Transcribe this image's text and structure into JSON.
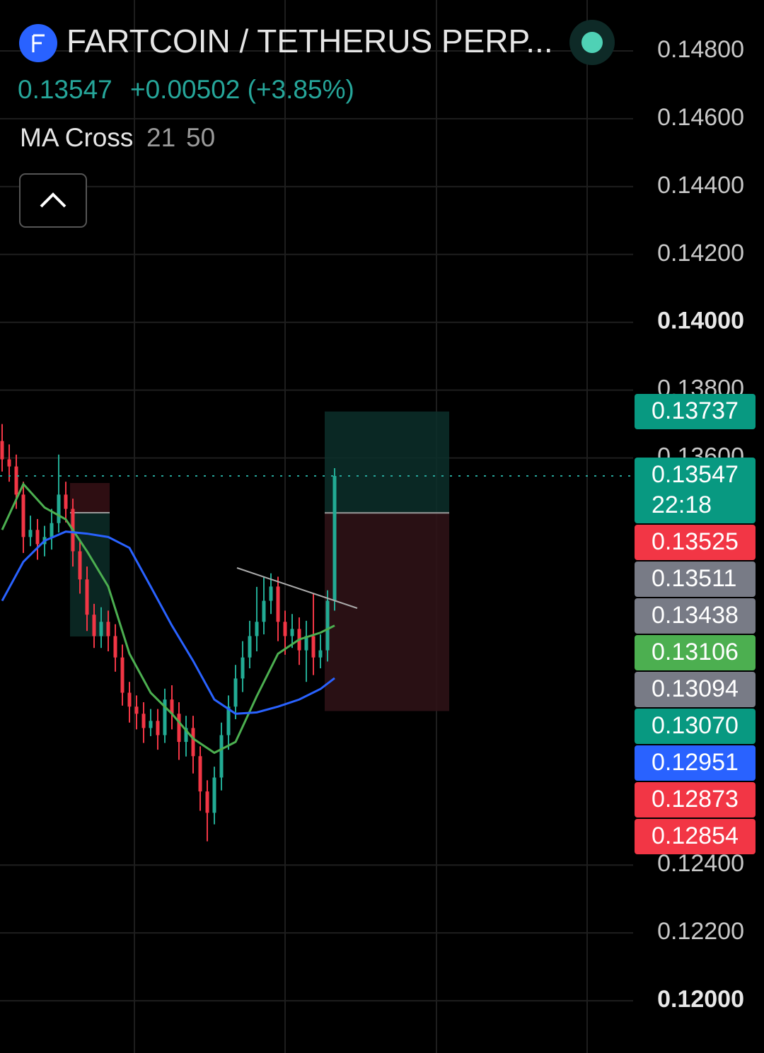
{
  "header": {
    "symbol": "FARTCOIN / TETHERUS PERP...",
    "last": "0.13547",
    "change": "+0.00502 (+3.85%)",
    "indicator": {
      "name": "MA Cross",
      "fast": "21",
      "slow": "50"
    }
  },
  "chart_data": {
    "type": "candlestick",
    "ylim": [
      0.11846,
      0.1495
    ],
    "yticks": [
      {
        "value": 0.148,
        "label": "0.14800"
      },
      {
        "value": 0.146,
        "label": "0.14600"
      },
      {
        "value": 0.144,
        "label": "0.14400"
      },
      {
        "value": 0.142,
        "label": "0.14200"
      },
      {
        "value": 0.14,
        "label": "0.14000",
        "bold": true
      },
      {
        "value": 0.138,
        "label": "0.13800"
      },
      {
        "value": 0.136,
        "label": "0.13600"
      },
      {
        "value": 0.124,
        "label": "0.12400"
      },
      {
        "value": 0.122,
        "label": "0.12200"
      },
      {
        "value": 0.12,
        "label": "0.12000",
        "bold": true
      }
    ],
    "up_color": "#22ab94",
    "down_color": "#f23645",
    "open": [
      0.1365,
      0.13596,
      0.13575,
      0.13492,
      0.13367,
      0.13388,
      0.13346,
      0.13367,
      0.13408,
      0.13492,
      0.1345,
      0.13325,
      0.13242,
      0.13138,
      0.13075,
      0.13117,
      0.13075,
      0.13012,
      0.12908,
      0.12867,
      0.12846,
      0.12804,
      0.12825,
      0.12783,
      0.12888,
      0.12846,
      0.12763,
      0.12804,
      0.12721,
      0.12617,
      0.12554,
      0.12658,
      0.12783,
      0.12867,
      0.1295,
      0.13012,
      0.13075,
      0.13117,
      0.13179,
      0.13221,
      0.13117,
      0.13075,
      0.13096,
      0.13033,
      0.13075,
      0.13012,
      0.13033,
      0.13179
    ],
    "high": [
      0.137,
      0.1364,
      0.1361,
      0.1353,
      0.1343,
      0.1342,
      0.134,
      0.1345,
      0.1361,
      0.1353,
      0.1348,
      0.1336,
      0.1328,
      0.1317,
      0.1316,
      0.1315,
      0.1311,
      0.1305,
      0.1294,
      0.129,
      0.1288,
      0.1286,
      0.1286,
      0.1292,
      0.1293,
      0.1288,
      0.1284,
      0.1284,
      0.1275,
      0.1265,
      0.1269,
      0.1282,
      0.129,
      0.1299,
      0.1306,
      0.1312,
      0.1322,
      0.1325,
      0.1326,
      0.1325,
      0.1315,
      0.1314,
      0.1313,
      0.1312,
      0.132,
      0.1308,
      0.1321,
      0.1357
    ],
    "low": [
      0.1356,
      0.1353,
      0.1345,
      0.1332,
      0.1334,
      0.133,
      0.1331,
      0.1333,
      0.1338,
      0.1341,
      0.1328,
      0.132,
      0.1309,
      0.1304,
      0.1304,
      0.1303,
      0.1297,
      0.1287,
      0.1282,
      0.128,
      0.1276,
      0.1278,
      0.1274,
      0.1276,
      0.128,
      0.1271,
      0.1272,
      0.1267,
      0.1256,
      0.1247,
      0.1252,
      0.1262,
      0.1274,
      0.1283,
      0.1291,
      0.1298,
      0.1303,
      0.1308,
      0.1314,
      0.1306,
      0.1302,
      0.1304,
      0.1299,
      0.1294,
      0.1296,
      0.1298,
      0.13,
      0.1315
    ],
    "close": [
      0.13596,
      0.13575,
      0.13492,
      0.13367,
      0.13388,
      0.13346,
      0.13367,
      0.13408,
      0.13492,
      0.1345,
      0.13325,
      0.13242,
      0.13138,
      0.13075,
      0.13117,
      0.13075,
      0.13012,
      0.12908,
      0.12867,
      0.12846,
      0.12804,
      0.12825,
      0.12783,
      0.12888,
      0.12846,
      0.12763,
      0.12804,
      0.12721,
      0.12617,
      0.12554,
      0.12658,
      0.12783,
      0.12867,
      0.1295,
      0.13012,
      0.13075,
      0.13117,
      0.13179,
      0.13221,
      0.13117,
      0.13075,
      0.13096,
      0.13033,
      0.13075,
      0.13012,
      0.13033,
      0.13179,
      0.13547
    ],
    "ma_lines": [
      {
        "color": "#4caf50",
        "x": [
          0,
          3,
          6,
          9,
          12,
          15,
          18,
          21,
          24,
          27,
          30,
          33,
          36,
          39,
          42,
          45,
          47
        ],
        "values": [
          0.13388,
          0.13523,
          0.13454,
          0.13419,
          0.13325,
          0.13221,
          0.13023,
          0.12908,
          0.12846,
          0.12773,
          0.12731,
          0.12763,
          0.12898,
          0.13023,
          0.13065,
          0.13085,
          0.13106
        ]
      },
      {
        "color": "#2962ff",
        "x": [
          0,
          3,
          6,
          9,
          12,
          15,
          18,
          21,
          24,
          27,
          30,
          33,
          36,
          39,
          42,
          45,
          47
        ],
        "values": [
          0.13179,
          0.13294,
          0.13356,
          0.13383,
          0.13377,
          0.13367,
          0.13335,
          0.13221,
          0.13106,
          0.13002,
          0.12888,
          0.12846,
          0.1285,
          0.12867,
          0.12888,
          0.12919,
          0.12951
        ]
      }
    ],
    "position": {
      "target": 0.13737,
      "entry": 0.13438,
      "stop": 0.12854
    },
    "last_price": 0.13547,
    "price_tags": [
      {
        "price": 0.13737,
        "color": "#089981"
      },
      {
        "price": 0.13547,
        "color": "#089981",
        "countdown": "22:18"
      },
      {
        "price": 0.13525,
        "color": "#f23645"
      },
      {
        "price": 0.13511,
        "color": "#787b86"
      },
      {
        "price": 0.13438,
        "color": "#787b86"
      },
      {
        "price": 0.13106,
        "color": "#4caf50"
      },
      {
        "price": 0.13094,
        "color": "#787b86"
      },
      {
        "price": {
          "value": 0.1307,
          "label": "0.13070"
        },
        "color": "#089981"
      },
      {
        "price": 0.12951,
        "color": "#2962ff"
      },
      {
        "price": 0.12873,
        "color": "#f23645"
      },
      {
        "price": 0.12854,
        "color": "#f23645"
      }
    ]
  }
}
